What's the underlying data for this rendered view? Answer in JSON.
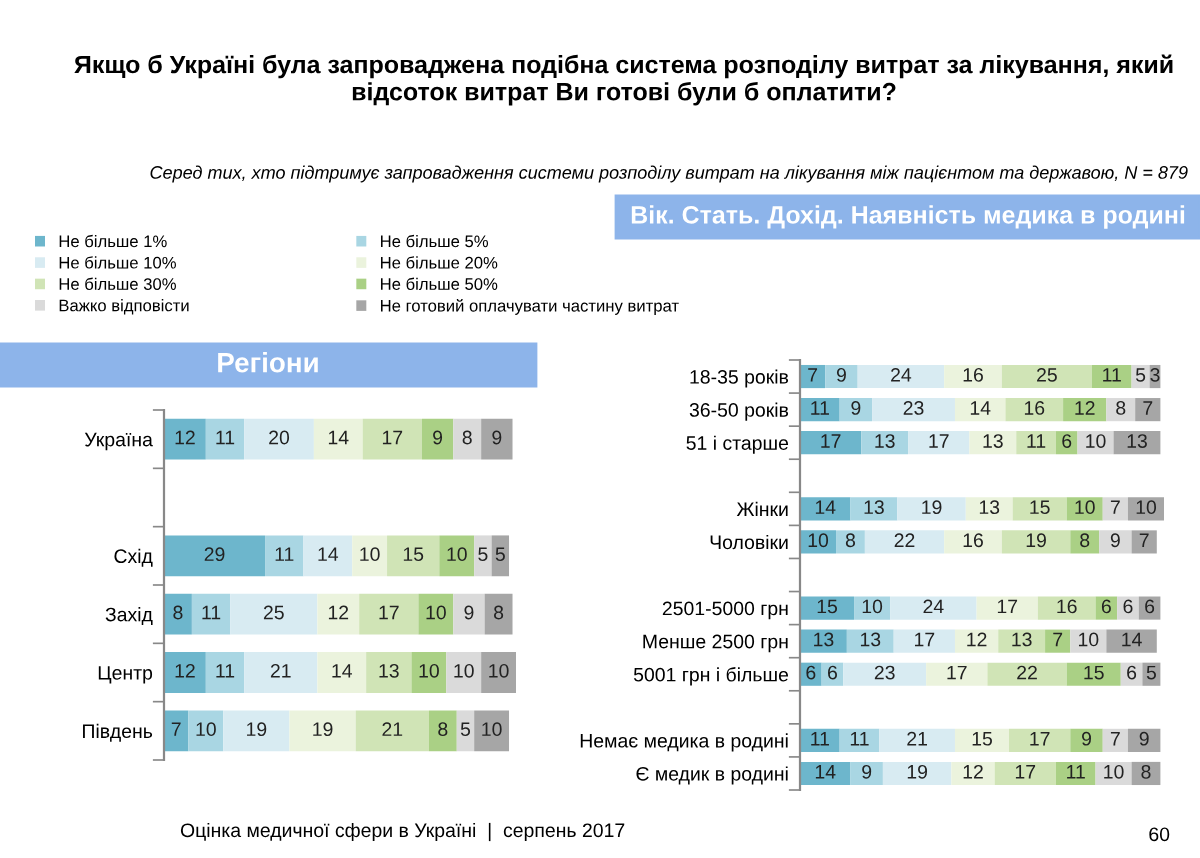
{
  "chart_data": [
    {
      "type": "bar",
      "orientation": "horizontal",
      "stacked": true,
      "data_labels": true,
      "legend": "top",
      "grid": false,
      "title": "Регіони",
      "annotations": [
        "Якщо б Україні була запроваджена подібна система розподілу витрат за лікування, який відсоток витрат Ви готові були б оплатити?",
        "Серед тих, хто підтримує запровадження системи розподілу витрат на лікування між пацієнтом та державою, N = 879"
      ],
      "categories": [
        "Україна",
        null,
        "Схід",
        "Захід",
        "Центр",
        "Південь"
      ],
      "series": [
        {
          "name": "Не більше 1%",
          "color": "#6db6cc",
          "values": [
            12,
            null,
            29,
            8,
            12,
            7
          ]
        },
        {
          "name": "Не більше 5%",
          "color": "#a9d6e3",
          "values": [
            11,
            null,
            11,
            11,
            11,
            10
          ]
        },
        {
          "name": "Не більше 10%",
          "color": "#d8ebf2",
          "values": [
            20,
            null,
            14,
            25,
            21,
            19
          ]
        },
        {
          "name": "Не більше 20%",
          "color": "#ebf3dd",
          "values": [
            14,
            null,
            10,
            12,
            14,
            19
          ]
        },
        {
          "name": "Не більше 30%",
          "color": "#d0e4b6",
          "values": [
            17,
            null,
            15,
            17,
            13,
            21
          ]
        },
        {
          "name": "Не більше 50%",
          "color": "#aad085",
          "values": [
            9,
            null,
            10,
            10,
            10,
            8
          ]
        },
        {
          "name": "Важко відповісти",
          "color": "#dadada",
          "values": [
            8,
            null,
            5,
            9,
            10,
            5
          ]
        },
        {
          "name": "Не готовий оплачувати частину витрат",
          "color": "#a6a6a6",
          "values": [
            9,
            null,
            5,
            8,
            10,
            10
          ]
        }
      ]
    },
    {
      "type": "bar",
      "orientation": "horizontal",
      "stacked": true,
      "data_labels": true,
      "grid": false,
      "title": "Вік. Стать. Дохід. Наявність медика в родині",
      "annotations": [
        "Оцінка медичної сфери в Україні  |  серпень 2017",
        "60"
      ],
      "categories": [
        "18-35 років",
        "36-50 років",
        "51 і старше",
        null,
        "Жінки",
        "Чоловіки",
        null,
        "2501-5000 грн",
        "Менше 2500 грн",
        "5001 грн і більше",
        null,
        "Немає медика в родині",
        "Є медик в родині"
      ],
      "series": [
        {
          "color": "#6db6cc",
          "values": [
            7,
            11,
            17,
            null,
            14,
            10,
            null,
            15,
            13,
            6,
            null,
            11,
            14
          ]
        },
        {
          "color": "#a9d6e3",
          "values": [
            9,
            9,
            13,
            null,
            13,
            8,
            null,
            10,
            13,
            6,
            null,
            11,
            9
          ]
        },
        {
          "color": "#d8ebf2",
          "values": [
            24,
            23,
            17,
            null,
            19,
            22,
            null,
            24,
            17,
            23,
            null,
            21,
            19
          ]
        },
        {
          "color": "#ebf3dd",
          "values": [
            16,
            14,
            13,
            null,
            13,
            16,
            null,
            17,
            12,
            17,
            null,
            15,
            12
          ]
        },
        {
          "color": "#d0e4b6",
          "values": [
            25,
            16,
            11,
            null,
            15,
            19,
            null,
            16,
            13,
            22,
            null,
            17,
            17
          ]
        },
        {
          "color": "#aad085",
          "values": [
            11,
            12,
            6,
            null,
            10,
            8,
            null,
            6,
            7,
            15,
            null,
            9,
            11
          ]
        },
        {
          "color": "#dadada",
          "values": [
            5,
            8,
            10,
            null,
            7,
            9,
            null,
            6,
            10,
            6,
            null,
            7,
            10
          ]
        },
        {
          "color": "#a6a6a6",
          "values": [
            3,
            7,
            13,
            null,
            10,
            7,
            null,
            6,
            14,
            5,
            null,
            9,
            8
          ]
        }
      ]
    }
  ]
}
